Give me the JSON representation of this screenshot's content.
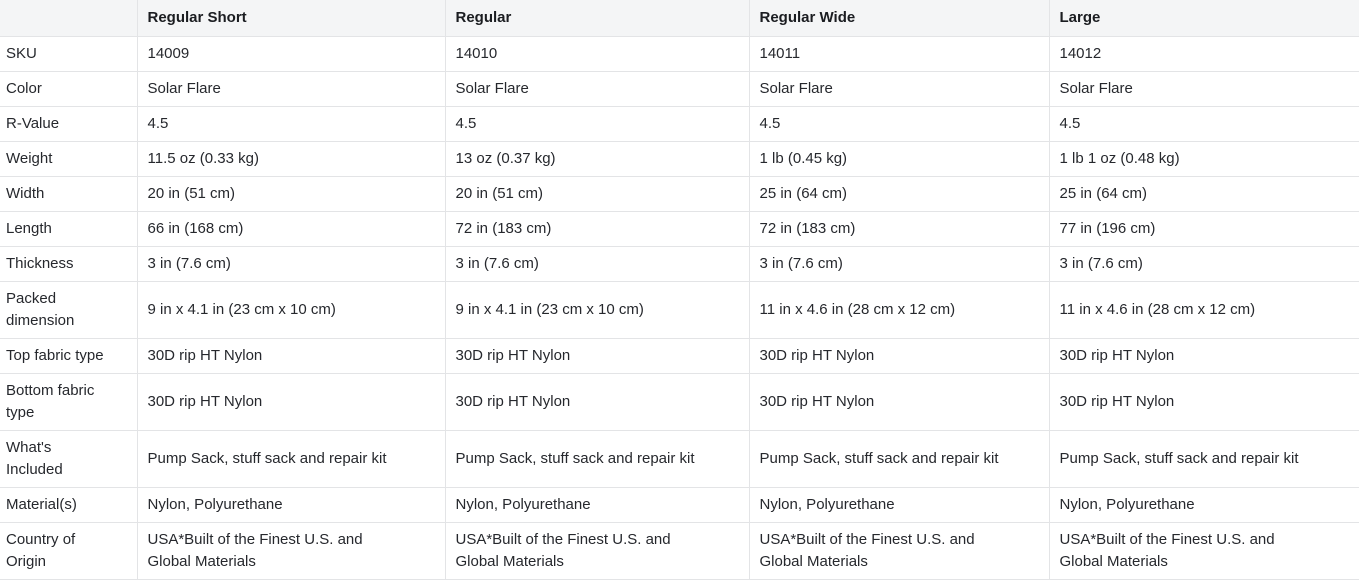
{
  "colors": {
    "header_bg": "#f4f5f6",
    "row_bg": "#ffffff",
    "border": "#e3e4e6",
    "text": "#26282d",
    "header_text": "#1b1d21"
  },
  "table": {
    "columns": [
      "",
      "Regular Short",
      "Regular",
      "Regular Wide",
      "Large"
    ],
    "rows": [
      {
        "label": "SKU",
        "values": [
          "14009",
          "14010",
          "14011",
          "14012"
        ]
      },
      {
        "label": "Color",
        "values": [
          "Solar Flare",
          "Solar Flare",
          "Solar Flare",
          "Solar Flare"
        ]
      },
      {
        "label": "R-Value",
        "values": [
          "4.5",
          "4.5",
          "4.5",
          "4.5"
        ]
      },
      {
        "label": "Weight",
        "values": [
          "11.5 oz (0.33 kg)",
          "13 oz (0.37 kg)",
          "1 lb (0.45 kg)",
          "1 lb 1 oz (0.48 kg)"
        ]
      },
      {
        "label": "Width",
        "values": [
          "20 in (51 cm)",
          "20 in (51 cm)",
          "25 in (64 cm)",
          "25 in (64 cm)"
        ]
      },
      {
        "label": "Length",
        "values": [
          "66 in (168 cm)",
          "72 in (183 cm)",
          "72 in (183 cm)",
          "77 in (196 cm)"
        ]
      },
      {
        "label": "Thickness",
        "values": [
          "3 in (7.6 cm)",
          "3 in (7.6 cm)",
          "3 in (7.6 cm)",
          "3 in (7.6 cm)"
        ]
      },
      {
        "label": "Packed dimension",
        "values": [
          "9 in x 4.1 in (23 cm x 10 cm)",
          "9 in x 4.1 in (23 cm x 10 cm)",
          "11 in x 4.6 in (28 cm x 12 cm)",
          "11 in x 4.6 in (28 cm x 12 cm)"
        ]
      },
      {
        "label": "Top fabric type",
        "values": [
          "30D rip HT Nylon",
          "30D rip HT Nylon",
          "30D rip HT Nylon",
          "30D rip HT Nylon"
        ]
      },
      {
        "label": "Bottom fabric type",
        "values": [
          "30D rip HT Nylon",
          "30D rip HT Nylon",
          "30D rip HT Nylon",
          "30D rip HT Nylon"
        ]
      },
      {
        "label": "What's Included",
        "values": [
          "Pump Sack, stuff sack and repair kit",
          "Pump Sack, stuff sack and repair kit",
          "Pump Sack, stuff sack and repair kit",
          "Pump Sack, stuff sack and repair kit"
        ]
      },
      {
        "label": "Material(s)",
        "values": [
          "Nylon, Polyurethane",
          "Nylon, Polyurethane",
          "Nylon, Polyurethane",
          "Nylon, Polyurethane"
        ]
      },
      {
        "label": "Country of Origin",
        "values": [
          "USA*Built of the Finest U.S. and Global Materials",
          "USA*Built of the Finest U.S. and Global Materials",
          "USA*Built of the Finest U.S. and Global Materials",
          "USA*Built of the Finest U.S. and Global Materials"
        ]
      }
    ]
  }
}
